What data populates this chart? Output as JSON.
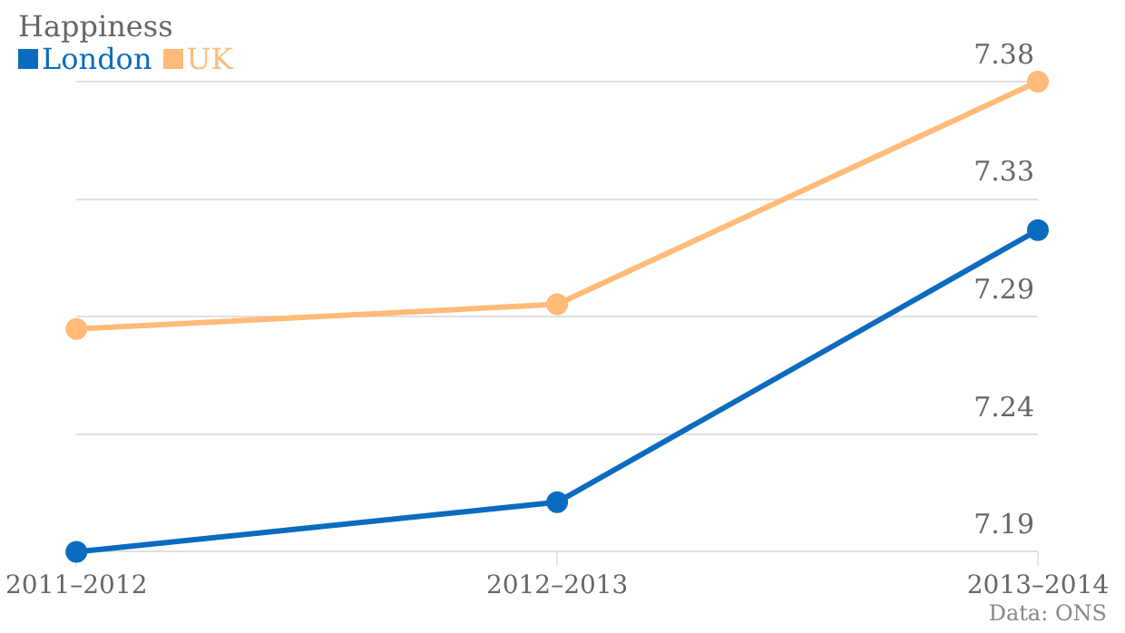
{
  "chart_data": {
    "type": "line",
    "title": "Happiness",
    "categories": [
      "2011–2012",
      "2012–2013",
      "2013–2014"
    ],
    "series": [
      {
        "name": "London",
        "color": "#0b6bbf",
        "values": [
          7.19,
          7.21,
          7.32
        ]
      },
      {
        "name": "UK",
        "color": "#ffbb77",
        "values": [
          7.28,
          7.29,
          7.38
        ]
      }
    ],
    "ylim": [
      7.19,
      7.38
    ],
    "yticks": [
      {
        "value": 7.19,
        "label": "7.19"
      },
      {
        "value": 7.2375,
        "label": "7.24"
      },
      {
        "value": 7.285,
        "label": "7.29"
      },
      {
        "value": 7.3325,
        "label": "7.33"
      },
      {
        "value": 7.38,
        "label": "7.38"
      }
    ],
    "grid": "y",
    "legend": "top left",
    "marker": "circle",
    "line_style": "solid",
    "annotations": [
      "Data: ONS"
    ]
  }
}
